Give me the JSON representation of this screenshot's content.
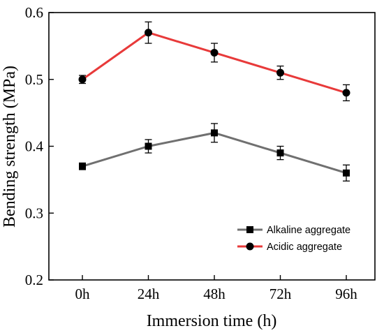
{
  "chart_data": {
    "type": "line",
    "title": "",
    "xlabel": "Immersion time (h)",
    "ylabel": "Bending strength (MPa)",
    "categories": [
      "0h",
      "24h",
      "48h",
      "72h",
      "96h"
    ],
    "ylim": [
      0.2,
      0.6
    ],
    "yticks": [
      0.2,
      0.3,
      0.4,
      0.5,
      0.6
    ],
    "ytick_labels": [
      "0.2",
      "0.3",
      "0.4",
      "0.5",
      "0.6"
    ],
    "grid": false,
    "legend_position": "bottom-right",
    "series": [
      {
        "name": "Alkaline aggregate",
        "color": "#707070",
        "marker": "square",
        "values": [
          0.37,
          0.4,
          0.42,
          0.39,
          0.36
        ],
        "errors": [
          0.005,
          0.01,
          0.014,
          0.01,
          0.012
        ]
      },
      {
        "name": "Acidic aggregate",
        "color": "#e83a3a",
        "marker": "circle",
        "values": [
          0.5,
          0.57,
          0.54,
          0.51,
          0.48
        ],
        "errors": [
          0.006,
          0.016,
          0.014,
          0.01,
          0.012
        ]
      }
    ]
  }
}
